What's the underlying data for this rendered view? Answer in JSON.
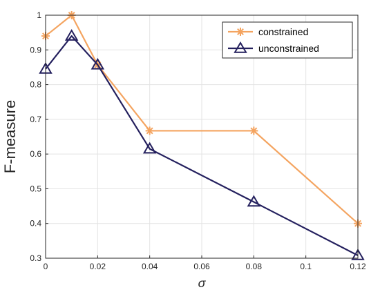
{
  "chart_data": {
    "type": "line",
    "xlabel": "σ",
    "ylabel": "F-measure",
    "xlim": [
      0,
      0.12
    ],
    "ylim": [
      0.3,
      1
    ],
    "x_ticks": [
      "0",
      "0.02",
      "0.04",
      "0.06",
      "0.08",
      "0.1",
      "0.12"
    ],
    "y_ticks": [
      "0.3",
      "0.4",
      "0.5",
      "0.6",
      "0.7",
      "0.8",
      "0.9",
      "1"
    ],
    "grid": true,
    "legend_position": "top-right",
    "series": [
      {
        "name": "constrained",
        "color": "#F4A460",
        "marker": "asterisk",
        "x": [
          0,
          0.01,
          0.02,
          0.04,
          0.08,
          0.12
        ],
        "y": [
          0.94,
          1.0,
          0.857,
          0.667,
          0.667,
          0.4
        ]
      },
      {
        "name": "unconstrained",
        "color": "#24205E",
        "marker": "triangle",
        "x": [
          0,
          0.01,
          0.02,
          0.04,
          0.08,
          0.12
        ],
        "y": [
          0.845,
          0.94,
          0.857,
          0.615,
          0.462,
          0.308
        ]
      }
    ]
  }
}
